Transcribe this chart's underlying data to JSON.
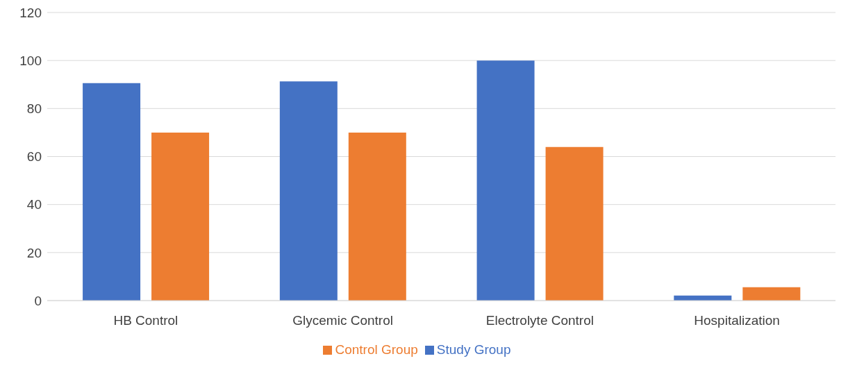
{
  "chart_data": {
    "type": "bar",
    "categories": [
      "HB Control",
      "Glycemic Control",
      "Electrolyte Control",
      "Hospitalization"
    ],
    "series": [
      {
        "name": "Study Group",
        "color": "#4472c4",
        "values": [
          90.6,
          91.3,
          100,
          2.1
        ]
      },
      {
        "name": "Control Group",
        "color": "#ed7d31",
        "values": [
          70,
          70,
          64,
          5.6
        ]
      }
    ],
    "ylim": [
      0,
      120
    ],
    "yticks": [
      0,
      20,
      40,
      60,
      80,
      100,
      120
    ],
    "grid": "y",
    "legend": "bottom"
  }
}
